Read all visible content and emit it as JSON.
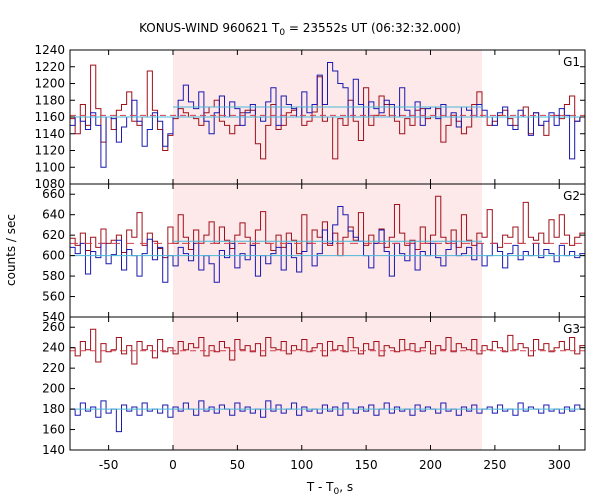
{
  "chart_data": {
    "type": "line",
    "title_main": "KONUS-WIND 960621 T",
    "title_sub": "0",
    "title_rest": " = 23552s UT (06:32:32.000)",
    "xlabel_main": "T - T",
    "xlabel_sub": "0",
    "xlabel_rest": ", s",
    "ylabel": "counts / sec",
    "xlim": [
      -80,
      320
    ],
    "xticks": [
      -50,
      0,
      50,
      100,
      150,
      200,
      250,
      300
    ],
    "bin_width": 4,
    "highlight_interval": [
      0,
      240
    ],
    "colors": {
      "red_series": "#a0101a",
      "blue_series": "#1a1ab0",
      "red_background": "#d04050",
      "blue_background": "#4ab8d8",
      "highlight": "#fde8ea"
    },
    "panels": [
      {
        "label": "G1",
        "ylim": [
          1080,
          1240
        ],
        "yticks": [
          1080,
          1100,
          1120,
          1140,
          1160,
          1180,
          1200,
          1220,
          1240
        ],
        "series": [
          {
            "color_key": "red_series",
            "values": [
              1158,
              1140,
              1175,
              1150,
              1222,
              1170,
              1130,
              1160,
              1145,
              1168,
              1175,
              1190,
              1155,
              1150,
              1160,
              1215,
              1168,
              1145,
              1120,
              1138,
              1158,
              1170,
              1165,
              1160,
              1158,
              1150,
              1165,
              1172,
              1180,
              1155,
              1150,
              1140,
              1150,
              1165,
              1168,
              1168,
              1128,
              1110,
              1150,
              1175,
              1145,
              1150,
              1165,
              1168,
              1172,
              1150,
              1155,
              1166,
              1208,
              1155,
              1160,
              1110,
              1158,
              1150,
              1180,
              1155,
              1132,
              1195,
              1150,
              1162,
              1185,
              1175,
              1160,
              1155,
              1140,
              1158,
              1150,
              1168,
              1170,
              1158,
              1160,
              1170,
              1130,
              1150,
              1162,
              1155,
              1140,
              1148,
              1175,
              1190,
              1160,
              1150,
              1155,
              1162,
              1168,
              1158,
              1150,
              1160,
              1172,
              1140,
              1165,
              1150,
              1138,
              1160,
              1162,
              1158,
              1175,
              1185,
              1155,
              1160
            ]
          },
          {
            "color_key": "blue_series",
            "values": [
              1150,
              1160,
              1155,
              1145,
              1165,
              1150,
              1100,
              1160,
              1158,
              1130,
              1148,
              1160,
              1180,
              1155,
              1125,
              1145,
              1165,
              1155,
              1125,
              1140,
              1160,
              1180,
              1198,
              1178,
              1170,
              1190,
              1155,
              1140,
              1165,
              1185,
              1160,
              1178,
              1170,
              1150,
              1165,
              1175,
              1160,
              1155,
              1178,
              1195,
              1150,
              1185,
              1175,
              1170,
              1160,
              1190,
              1165,
              1175,
              1210,
              1175,
              1225,
              1215,
              1200,
              1195,
              1160,
              1205,
              1175,
              1160,
              1178,
              1170,
              1165,
              1180,
              1175,
              1160,
              1195,
              1168,
              1160,
              1178,
              1150,
              1170,
              1172,
              1158,
              1175,
              1160,
              1165,
              1148,
              1172,
              1168,
              1160,
              1175,
              1168,
              1160,
              1150,
              1165,
              1172,
              1150,
              1145,
              1168,
              1160,
              1138,
              1165,
              1150,
              1155,
              1165,
              1150,
              1170,
              1162,
              1110,
              1155,
              1160
            ]
          }
        ],
        "background_lines": [
          {
            "color_key": "red_background",
            "value": 1162,
            "dash": "6,4"
          },
          {
            "color_key": "blue_background",
            "value": 1160,
            "dash": ""
          },
          {
            "color_key": "blue_background",
            "value": 1172,
            "dash": "",
            "from": 0,
            "to": 240
          }
        ]
      },
      {
        "label": "G2",
        "ylim": [
          540,
          670
        ],
        "yticks": [
          540,
          560,
          580,
          600,
          620,
          640,
          660
        ],
        "series": [
          {
            "color_key": "red_series",
            "values": [
              617,
              610,
              622,
              605,
              618,
              608,
              626,
              612,
              615,
              620,
              603,
              625,
              618,
              642,
              610,
              622,
              614,
              607,
              598,
              628,
              612,
              640,
              618,
              606,
              625,
              612,
              620,
              633,
              612,
              628,
              615,
              607,
              620,
              632,
              618,
              610,
              625,
              643,
              612,
              605,
              620,
              608,
              622,
              615,
              602,
              640,
              612,
              625,
              618,
              633,
              610,
              622,
              600,
              618,
              628,
              615,
              642,
              610,
              620,
              612,
              626,
              608,
              618,
              650,
              622,
              610,
              615,
              606,
              628,
              612,
              620,
              658,
              618,
              612,
              625,
              608,
              640,
              615,
              610,
              622,
              618,
              645,
              612,
              608,
              620,
              618,
              628,
              612,
              652,
              618,
              615,
              622,
              612,
              635,
              618,
              640,
              620,
              610,
              618,
              622
            ]
          },
          {
            "color_key": "blue_series",
            "values": [
              608,
              602,
              612,
              582,
              604,
              598,
              612,
              592,
              601,
              615,
              586,
              606,
              600,
              580,
              602,
              616,
              596,
              608,
              574,
              600,
              590,
              608,
              602,
              595,
              612,
              586,
              600,
              592,
              574,
              605,
              598,
              612,
              588,
              602,
              596,
              610,
              580,
              600,
              592,
              602,
              608,
              586,
              612,
              598,
              584,
              604,
              612,
              590,
              602,
              625,
              612,
              630,
              648,
              640,
              624,
              618,
              614,
              600,
              588,
              612,
              625,
              604,
              580,
              612,
              602,
              595,
              612,
              586,
              604,
              600,
              612,
              598,
              590,
              606,
              614,
              600,
              602,
              608,
              596,
              612,
              590,
              600,
              612,
              604,
              588,
              602,
              610,
              596,
              604,
              600,
              612,
              598,
              606,
              602,
              594,
              610,
              600,
              604,
              598,
              602
            ]
          }
        ],
        "background_lines": [
          {
            "color_key": "red_background",
            "value": 612,
            "dash": "8,6"
          },
          {
            "color_key": "blue_background",
            "value": 600,
            "dash": ""
          },
          {
            "color_key": "blue_background",
            "value": 614,
            "dash": "",
            "from": 0,
            "to": 240
          }
        ]
      },
      {
        "label": "G3",
        "ylim": [
          140,
          270
        ],
        "yticks": [
          140,
          160,
          180,
          200,
          220,
          240,
          260
        ],
        "series": [
          {
            "color_key": "red_series",
            "values": [
              240,
              232,
              246,
              238,
              258,
              226,
              244,
              236,
              238,
              250,
              234,
              242,
              224,
              246,
              238,
              242,
              230,
              248,
              236,
              240,
              234,
              246,
              238,
              244,
              240,
              250,
              232,
              242,
              236,
              246,
              240,
              228,
              248,
              238,
              242,
              236,
              244,
              232,
              250,
              240,
              238,
              246,
              234,
              242,
              238,
              248,
              236,
              240,
              244,
              232,
              246,
              238,
              242,
              236,
              250,
              240,
              234,
              244,
              238,
              246,
              232,
              242,
              240,
              236,
              248,
              238,
              244,
              236,
              240,
              246,
              234,
              242,
              238,
              250,
              236,
              244,
              240,
              238,
              248,
              234,
              242,
              238,
              246,
              240,
              236,
              252,
              238,
              244,
              240,
              232,
              248,
              238,
              244,
              236,
              240,
              246,
              238,
              250,
              234,
              242
            ]
          },
          {
            "color_key": "blue_series",
            "values": [
              180,
              174,
              186,
              178,
              182,
              172,
              188,
              176,
              180,
              158,
              184,
              178,
              182,
              174,
              186,
              178,
              180,
              176,
              184,
              172,
              182,
              178,
              186,
              180,
              174,
              188,
              178,
              182,
              176,
              184,
              180,
              174,
              186,
              178,
              182,
              176,
              180,
              172,
              188,
              178,
              184,
              176,
              180,
              186,
              174,
              182,
              178,
              180,
              176,
              184,
              178,
              182,
              174,
              186,
              180,
              176,
              182,
              178,
              184,
              174,
              180,
              186,
              176,
              182,
              178,
              180,
              174,
              184,
              178,
              182,
              180,
              176,
              186,
              178,
              180,
              174,
              182,
              178,
              184,
              176,
              180,
              182,
              176,
              184,
              178,
              180,
              174,
              186,
              178,
              182,
              180,
              176,
              184,
              178,
              180,
              176,
              182,
              178,
              184,
              180
            ]
          }
        ],
        "background_lines": [
          {
            "color_key": "red_background",
            "value": 237,
            "dash": "6,4"
          },
          {
            "color_key": "blue_background",
            "value": 180,
            "dash": ""
          }
        ]
      }
    ]
  }
}
